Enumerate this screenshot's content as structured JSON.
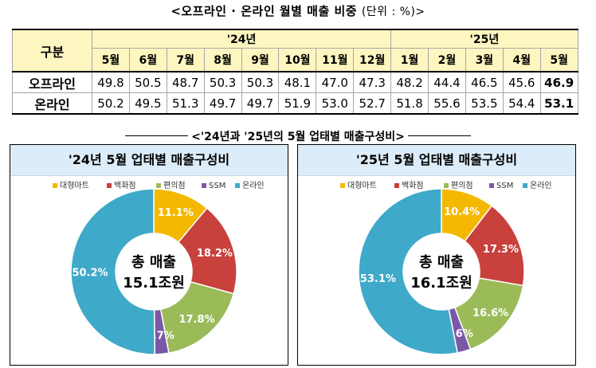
{
  "title_main": "<오프라인 · 온라인 월별 매출 비중",
  "title_unit": "(단위 : %)>",
  "table": {
    "header_label": "구분",
    "year_groups": [
      "'24년",
      "'25년"
    ],
    "months_24": [
      "5월",
      "6월",
      "7월",
      "8월",
      "9월",
      "10월",
      "11월",
      "12월"
    ],
    "months_25": [
      "1월",
      "2월",
      "3월",
      "4월",
      "5월"
    ],
    "rows": [
      {
        "label": "오프라인",
        "values": [
          "49.8",
          "50.5",
          "48.7",
          "50.3",
          "50.3",
          "48.1",
          "47.0",
          "47.3",
          "48.2",
          "44.4",
          "46.5",
          "45.6",
          "46.9"
        ]
      },
      {
        "label": "온라인",
        "values": [
          "50.2",
          "49.5",
          "51.3",
          "49.7",
          "49.7",
          "51.9",
          "53.0",
          "52.7",
          "51.8",
          "55.6",
          "53.5",
          "54.4",
          "53.1"
        ]
      }
    ]
  },
  "section_title": "<'24년과 '25년의 5월 업태별 매출구성비>",
  "colors": {
    "대형마트": "#f5b800",
    "백화점": "#c8413d",
    "편의점": "#9bbb59",
    "SSM": "#7a58a6",
    "온라인": "#3fa9c9"
  },
  "chart_data": [
    {
      "type": "pie",
      "title": "'24년 5월 업태별 매출구성비",
      "legend": [
        "대형마트",
        "백화점",
        "편의점",
        "SSM",
        "온라인"
      ],
      "values": [
        11.1,
        18.2,
        17.8,
        2.7,
        50.2
      ],
      "labels": [
        "11.1%",
        "18.2%",
        "17.8%",
        "2.7%",
        "50.2%"
      ],
      "center_line1": "총 매출",
      "center_line2": "15.1조원"
    },
    {
      "type": "pie",
      "title": "'25년 5월 업태별 매출구성비",
      "legend": [
        "대형마트",
        "백화점",
        "편의점",
        "SSM",
        "온라인"
      ],
      "values": [
        10.4,
        17.3,
        16.6,
        2.6,
        53.1
      ],
      "labels": [
        "10.4%",
        "17.3%",
        "16.6%",
        "2.6%",
        "53.1%"
      ],
      "center_line1": "총 매출",
      "center_line2": "16.1조원"
    }
  ]
}
